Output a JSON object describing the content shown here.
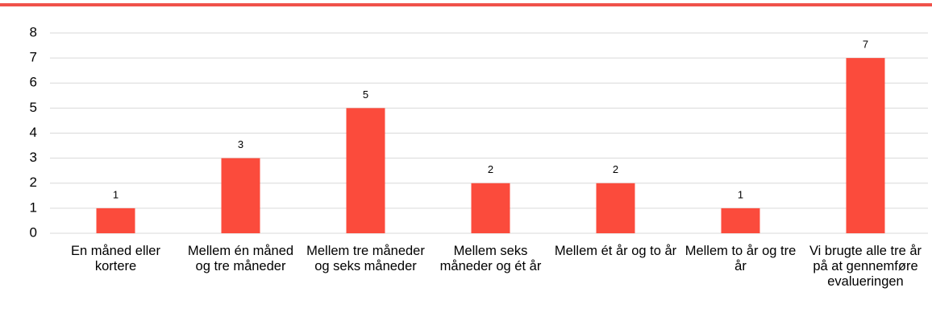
{
  "chart_data": {
    "type": "bar",
    "categories": [
      "En måned eller kortere",
      "Mellem én måned og tre måneder",
      "Mellem tre måneder og seks måneder",
      "Mellem seks måneder og ét år",
      "Mellem ét år og to år",
      "Mellem to år og tre år",
      "Vi brugte alle tre år på at gennemføre evalueringen"
    ],
    "values": [
      1,
      3,
      5,
      2,
      2,
      1,
      7
    ],
    "color": "#fb4b3c",
    "ylim": [
      0,
      8
    ],
    "yticks": [
      0,
      1,
      2,
      3,
      4,
      5,
      6,
      7,
      8
    ],
    "grid": true
  }
}
